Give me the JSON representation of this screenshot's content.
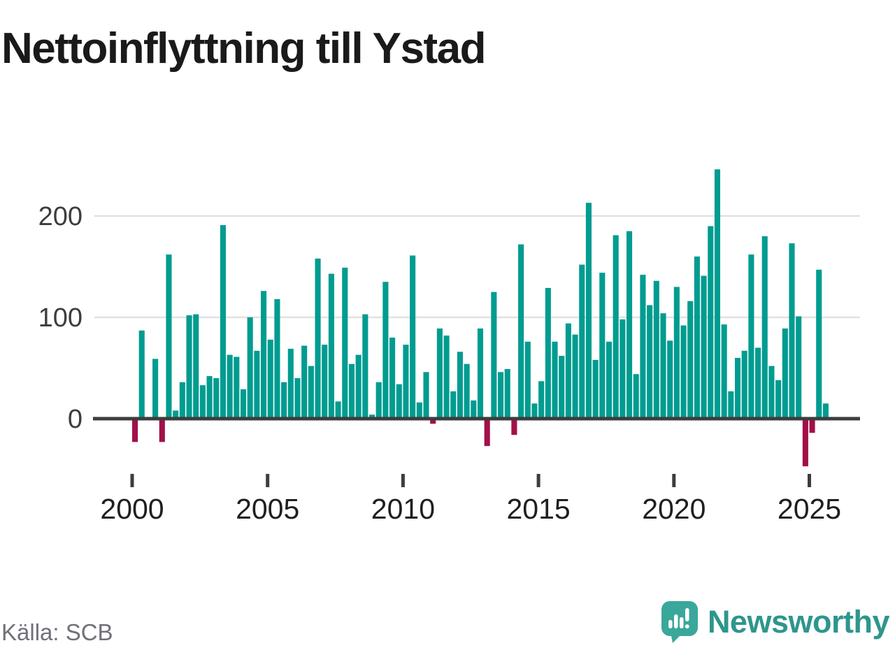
{
  "title": "Nettoinflyttning till Ystad",
  "source": "Källa: SCB",
  "brand": {
    "name": "Newsworthy"
  },
  "colors": {
    "positive_bar": "#009c90",
    "negative_bar": "#a31049",
    "axis": "#3d3d3d",
    "grid": "#e1e1e1",
    "y_label": "#3d3d3d",
    "x_label": "#1f1f1f",
    "title": "#1a1a1a",
    "source": "#70707a",
    "brand_teal": "#2e968c",
    "logo_teal": "#3aa79b"
  },
  "chart_data": {
    "type": "bar",
    "title": "Nettoinflyttning till Ystad",
    "frequency": "quarterly",
    "start_period": "2000Q1",
    "end_period": "2025Q3",
    "x_tick_labels": [
      "2000",
      "2005",
      "2010",
      "2015",
      "2020",
      "2025"
    ],
    "y_ticks": [
      0,
      100,
      200
    ],
    "ylim": [
      -60,
      260
    ],
    "grid": "horizontal",
    "legend": "none",
    "values": [
      -23,
      87,
      0,
      59,
      -23,
      162,
      8,
      36,
      102,
      103,
      33,
      42,
      40,
      191,
      63,
      61,
      29,
      100,
      67,
      126,
      78,
      118,
      36,
      69,
      40,
      72,
      52,
      158,
      73,
      143,
      17,
      149,
      54,
      63,
      103,
      4,
      36,
      135,
      80,
      34,
      73,
      161,
      16,
      46,
      -5,
      89,
      82,
      27,
      66,
      54,
      18,
      89,
      -27,
      125,
      46,
      49,
      -16,
      172,
      76,
      15,
      37,
      129,
      76,
      62,
      94,
      83,
      152,
      213,
      58,
      144,
      76,
      181,
      98,
      185,
      44,
      142,
      112,
      136,
      104,
      77,
      130,
      92,
      116,
      160,
      141,
      190,
      246,
      93,
      27,
      60,
      67,
      162,
      70,
      180,
      52,
      38,
      89,
      173,
      101,
      -47,
      -14,
      147,
      15
    ]
  }
}
